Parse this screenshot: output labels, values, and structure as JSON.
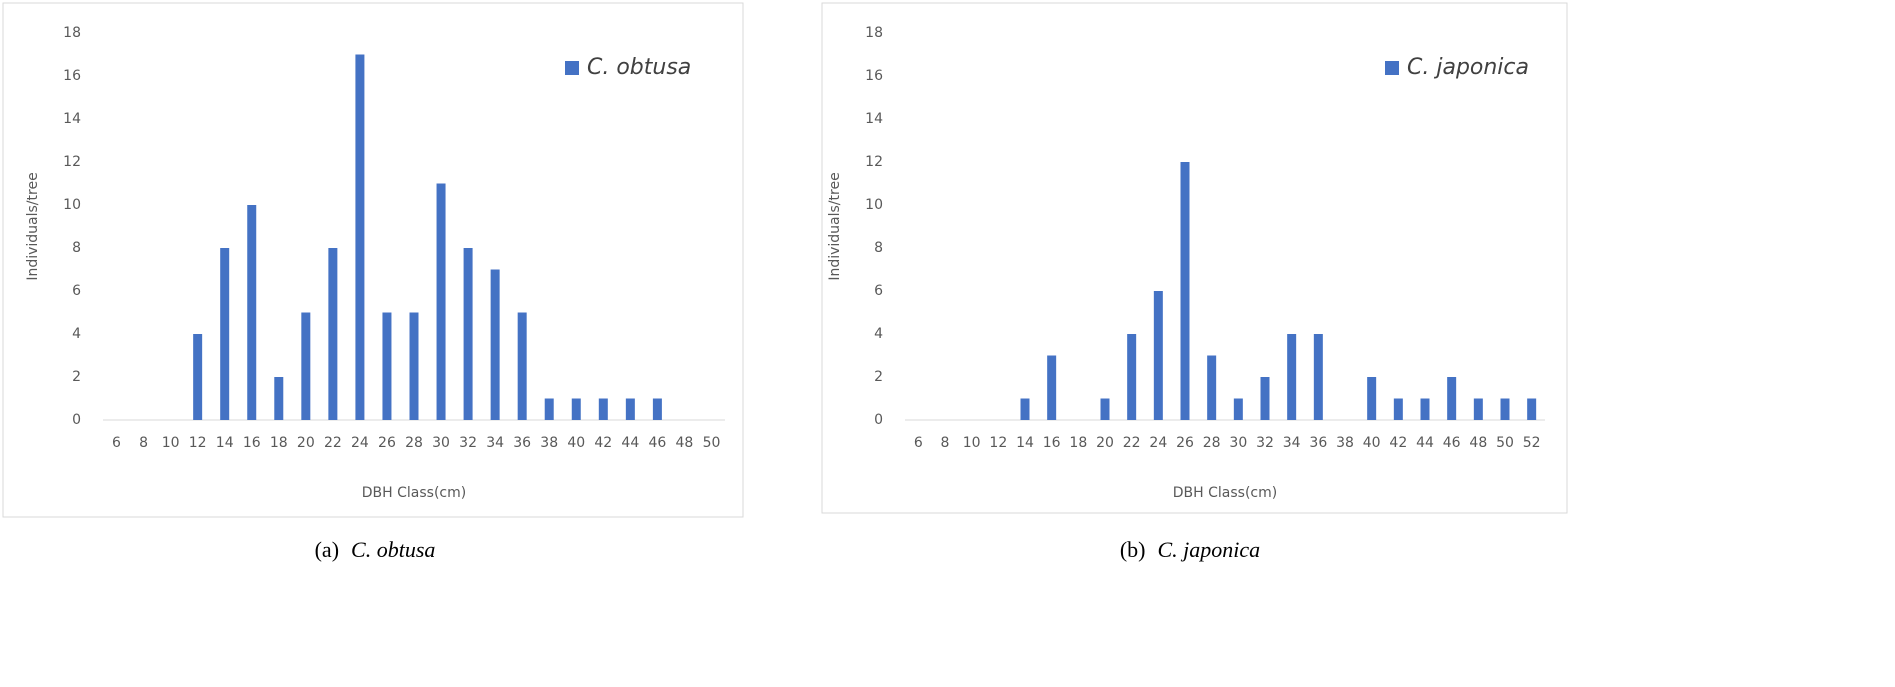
{
  "chart_data": [
    {
      "type": "bar",
      "caption_label": "(a)",
      "caption_text": "C. obtusa",
      "x_label": "DBH Class(cm)",
      "y_label": "Individuals/tree",
      "categories": [
        "6",
        "8",
        "10",
        "12",
        "14",
        "16",
        "18",
        "20",
        "22",
        "24",
        "26",
        "28",
        "30",
        "32",
        "34",
        "36",
        "38",
        "40",
        "42",
        "44",
        "46",
        "48",
        "50"
      ],
      "series": [
        {
          "name": "C. obtusa",
          "color": "#4472c4",
          "values": [
            0,
            0,
            0,
            4,
            8,
            10,
            2,
            5,
            8,
            17,
            5,
            5,
            11,
            8,
            7,
            5,
            1,
            1,
            1,
            1,
            1,
            0,
            0
          ]
        }
      ],
      "ylim": [
        0,
        18
      ],
      "yticks": [
        0,
        2,
        4,
        6,
        8,
        10,
        12,
        14,
        16,
        18
      ],
      "grid": false,
      "legend": "top-right"
    },
    {
      "type": "bar",
      "caption_label": "(b)",
      "caption_text": "C. japonica",
      "x_label": "DBH Class(cm)",
      "y_label": "Individuals/tree",
      "categories": [
        "6",
        "8",
        "10",
        "12",
        "14",
        "16",
        "18",
        "20",
        "22",
        "24",
        "26",
        "28",
        "30",
        "32",
        "34",
        "36",
        "38",
        "40",
        "42",
        "44",
        "46",
        "48",
        "50",
        "52"
      ],
      "series": [
        {
          "name": "C. japonica",
          "color": "#4472c4",
          "values": [
            0,
            0,
            0,
            0,
            1,
            3,
            0,
            1,
            4,
            6,
            12,
            3,
            1,
            2,
            4,
            4,
            0,
            2,
            1,
            1,
            2,
            1,
            1,
            1
          ]
        }
      ],
      "ylim": [
        0,
        18
      ],
      "yticks": [
        0,
        2,
        4,
        6,
        8,
        10,
        12,
        14,
        16,
        18
      ],
      "grid": false,
      "legend": "top-right"
    }
  ]
}
